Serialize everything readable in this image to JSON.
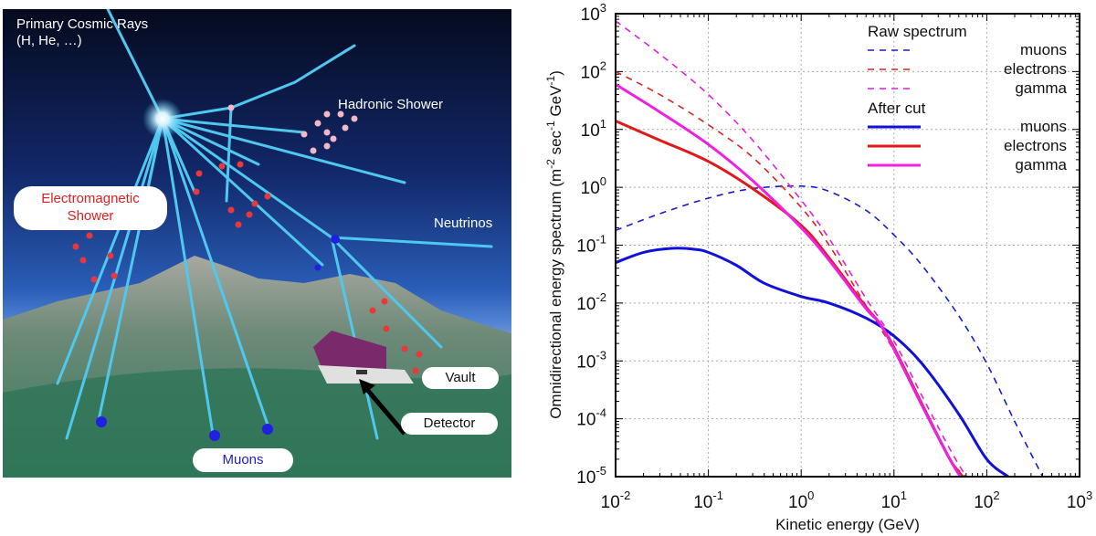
{
  "illustration": {
    "title_line1": "Primary Cosmic Rays",
    "title_line2": "(H, He, …)",
    "hadronic": "Hadronic Shower",
    "em_line1": "Electromagnetic",
    "em_line2": "Shower",
    "neutrinos": "Neutrinos",
    "vault": "Vault",
    "detector": "Detector",
    "muons": "Muons",
    "colors": {
      "sky_top": "#050a1e",
      "sky_bottom": "#3a78c8",
      "ray": "#4fc8f0",
      "em_particle": "#e8383c",
      "muon_particle": "#2020e0",
      "em_text": "#e02020",
      "muon_text": "#2020c8"
    }
  },
  "chart_data": {
    "type": "line",
    "xscale": "log",
    "yscale": "log",
    "xlim": [
      0.01,
      1000
    ],
    "ylim": [
      1e-05,
      1000
    ],
    "xlabel": "Kinetic energy (GeV)",
    "ylabel_parts": [
      "Omnidirectional energy spectrum (m",
      "-2",
      " sec",
      "-1",
      " GeV",
      "-1",
      ")"
    ],
    "xticks": [
      {
        "base": "10",
        "exp": "-2"
      },
      {
        "base": "10",
        "exp": "-1"
      },
      {
        "base": "10",
        "exp": "0"
      },
      {
        "base": "10",
        "exp": "1"
      },
      {
        "base": "10",
        "exp": "2"
      },
      {
        "base": "10",
        "exp": "3"
      }
    ],
    "yticks": [
      {
        "base": "10",
        "exp": "3"
      },
      {
        "base": "10",
        "exp": "2"
      },
      {
        "base": "10",
        "exp": "1"
      },
      {
        "base": "10",
        "exp": "0"
      },
      {
        "base": "10",
        "exp": "-1"
      },
      {
        "base": "10",
        "exp": "-2"
      },
      {
        "base": "10",
        "exp": "-3"
      },
      {
        "base": "10",
        "exp": "-4"
      },
      {
        "base": "10",
        "exp": "-5"
      }
    ],
    "grid": true,
    "legend_position": "top-right",
    "legend_groups": [
      {
        "title": "Raw spectrum",
        "entries": [
          {
            "label": "muons",
            "series": 0
          },
          {
            "label": "electrons",
            "series": 1
          },
          {
            "label": "gamma",
            "series": 2
          }
        ]
      },
      {
        "title": "After cut",
        "entries": [
          {
            "label": "muons",
            "series": 3
          },
          {
            "label": "electrons",
            "series": 4
          },
          {
            "label": "gamma",
            "series": 5
          }
        ]
      }
    ],
    "series": [
      {
        "name": "Raw spectrum muons",
        "color": "#1a1ad0",
        "style": "dashed",
        "x": [
          0.01,
          0.03,
          0.1,
          0.3,
          1,
          2,
          5,
          10,
          20,
          50,
          100,
          200,
          400
        ],
        "y": [
          0.18,
          0.35,
          0.65,
          0.95,
          1.05,
          0.85,
          0.4,
          0.15,
          0.045,
          0.006,
          0.0009,
          9e-05,
          1e-05
        ]
      },
      {
        "name": "Raw spectrum electrons",
        "color": "#e02020",
        "style": "dashed",
        "x": [
          0.01,
          0.03,
          0.1,
          0.3,
          1,
          2,
          5,
          10,
          20,
          40,
          60
        ],
        "y": [
          100,
          40,
          12,
          3.3,
          0.45,
          0.1,
          0.009,
          0.0015,
          0.00017,
          2e-05,
          1e-05
        ]
      },
      {
        "name": "Raw spectrum gamma",
        "color": "#e020e0",
        "style": "dashed",
        "x": [
          0.01,
          0.03,
          0.1,
          0.3,
          1,
          2,
          5,
          10,
          20,
          40,
          60
        ],
        "y": [
          750,
          200,
          40,
          6.5,
          0.6,
          0.13,
          0.012,
          0.0022,
          0.00025,
          3e-05,
          1e-05
        ]
      },
      {
        "name": "After cut muons",
        "color": "#1010d8",
        "style": "solid",
        "x": [
          0.01,
          0.02,
          0.04,
          0.07,
          0.1,
          0.2,
          0.4,
          1,
          2,
          5,
          10,
          20,
          50,
          100,
          170
        ],
        "y": [
          0.05,
          0.075,
          0.088,
          0.085,
          0.075,
          0.045,
          0.022,
          0.013,
          0.01,
          0.0055,
          0.0027,
          0.0009,
          0.00012,
          2e-05,
          1e-05
        ]
      },
      {
        "name": "After cut electrons",
        "color": "#e01818",
        "style": "solid",
        "x": [
          0.01,
          0.03,
          0.1,
          0.3,
          1,
          2,
          5,
          7,
          10,
          20,
          40,
          55
        ],
        "y": [
          14,
          6.5,
          2.8,
          0.95,
          0.22,
          0.06,
          0.0085,
          0.0045,
          0.0017,
          0.00018,
          2e-05,
          1e-05
        ]
      },
      {
        "name": "After cut gamma",
        "color": "#f020e0",
        "style": "solid",
        "x": [
          0.01,
          0.03,
          0.1,
          0.3,
          1,
          2,
          5,
          7,
          10,
          20,
          40,
          52
        ],
        "y": [
          60,
          20,
          5.5,
          1.3,
          0.2,
          0.055,
          0.008,
          0.0045,
          0.0016,
          0.00017,
          2e-05,
          1e-05
        ]
      }
    ]
  }
}
